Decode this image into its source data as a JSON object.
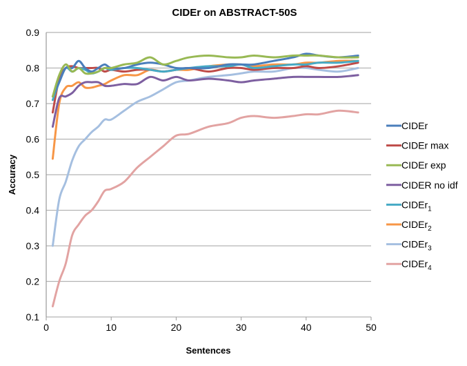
{
  "chart_data": {
    "type": "line",
    "title": "CIDEr on ABSTRACT-50S",
    "xlabel": "Sentences",
    "ylabel": "Accuracy",
    "xlim": [
      0,
      50
    ],
    "ylim": [
      0.1,
      0.9
    ],
    "xticks": [
      0,
      10,
      20,
      30,
      40,
      50
    ],
    "yticks": [
      0.1,
      0.2,
      0.3,
      0.4,
      0.5,
      0.6,
      0.7,
      0.8,
      0.9
    ],
    "ytick_labels": [
      "0.1",
      "0.2",
      "0.3",
      "0.4",
      "0.5",
      "0.6",
      "0.7",
      "0.8",
      "0.9"
    ],
    "grid": "horizontal",
    "legend_position": "right",
    "x": [
      1,
      2,
      3,
      4,
      5,
      6,
      7,
      8,
      9,
      10,
      12,
      14,
      16,
      18,
      20,
      22,
      25,
      28,
      30,
      32,
      35,
      38,
      40,
      42,
      45,
      48
    ],
    "series": [
      {
        "name": "CIDEr",
        "sub": "",
        "color": "#4a7ebb",
        "values": [
          0.72,
          0.76,
          0.8,
          0.8,
          0.82,
          0.8,
          0.79,
          0.8,
          0.81,
          0.8,
          0.8,
          0.81,
          0.815,
          0.81,
          0.8,
          0.8,
          0.8,
          0.81,
          0.81,
          0.81,
          0.82,
          0.83,
          0.84,
          0.835,
          0.83,
          0.835
        ]
      },
      {
        "name": "CIDEr max",
        "sub": "",
        "color": "#be4b48",
        "values": [
          0.675,
          0.77,
          0.8,
          0.805,
          0.8,
          0.8,
          0.8,
          0.8,
          0.79,
          0.795,
          0.79,
          0.795,
          0.795,
          0.79,
          0.795,
          0.8,
          0.79,
          0.8,
          0.8,
          0.795,
          0.8,
          0.8,
          0.805,
          0.8,
          0.805,
          0.815
        ]
      },
      {
        "name": "CIDEr exp",
        "sub": "",
        "color": "#98b954",
        "values": [
          0.72,
          0.78,
          0.81,
          0.79,
          0.8,
          0.785,
          0.785,
          0.79,
          0.8,
          0.8,
          0.81,
          0.815,
          0.83,
          0.81,
          0.82,
          0.83,
          0.835,
          0.83,
          0.83,
          0.835,
          0.83,
          0.835,
          0.835,
          0.835,
          0.83,
          0.83
        ]
      },
      {
        "name": "CIDER no idf",
        "sub": "",
        "color": "#7d5fa0",
        "values": [
          0.635,
          0.715,
          0.72,
          0.73,
          0.75,
          0.76,
          0.76,
          0.76,
          0.75,
          0.75,
          0.755,
          0.755,
          0.775,
          0.765,
          0.775,
          0.765,
          0.77,
          0.765,
          0.76,
          0.765,
          0.77,
          0.775,
          0.775,
          0.775,
          0.775,
          0.78
        ]
      },
      {
        "name": "CIDEr",
        "sub": "1",
        "color": "#46aac5",
        "values": [
          0.71,
          0.76,
          0.8,
          0.79,
          0.8,
          0.795,
          0.785,
          0.79,
          0.8,
          0.795,
          0.8,
          0.8,
          0.795,
          0.79,
          0.795,
          0.8,
          0.805,
          0.805,
          0.81,
          0.8,
          0.805,
          0.81,
          0.81,
          0.815,
          0.815,
          0.82
        ]
      },
      {
        "name": "CIDEr",
        "sub": "2",
        "color": "#f79646",
        "values": [
          0.545,
          0.7,
          0.745,
          0.75,
          0.76,
          0.745,
          0.745,
          0.75,
          0.755,
          0.765,
          0.78,
          0.78,
          0.795,
          0.79,
          0.795,
          0.795,
          0.805,
          0.81,
          0.81,
          0.805,
          0.81,
          0.81,
          0.815,
          0.815,
          0.82,
          0.82
        ]
      },
      {
        "name": "CIDEr",
        "sub": "3",
        "color": "#a5bfe0",
        "values": [
          0.3,
          0.43,
          0.48,
          0.54,
          0.58,
          0.6,
          0.62,
          0.635,
          0.655,
          0.655,
          0.68,
          0.705,
          0.72,
          0.74,
          0.76,
          0.765,
          0.775,
          0.78,
          0.785,
          0.79,
          0.79,
          0.8,
          0.8,
          0.795,
          0.79,
          0.8
        ]
      },
      {
        "name": "CIDEr",
        "sub": "4",
        "color": "#e2a3a2",
        "values": [
          0.13,
          0.2,
          0.25,
          0.33,
          0.36,
          0.385,
          0.4,
          0.425,
          0.455,
          0.46,
          0.48,
          0.52,
          0.55,
          0.58,
          0.61,
          0.615,
          0.635,
          0.645,
          0.66,
          0.665,
          0.66,
          0.665,
          0.67,
          0.67,
          0.68,
          0.675
        ]
      }
    ]
  }
}
